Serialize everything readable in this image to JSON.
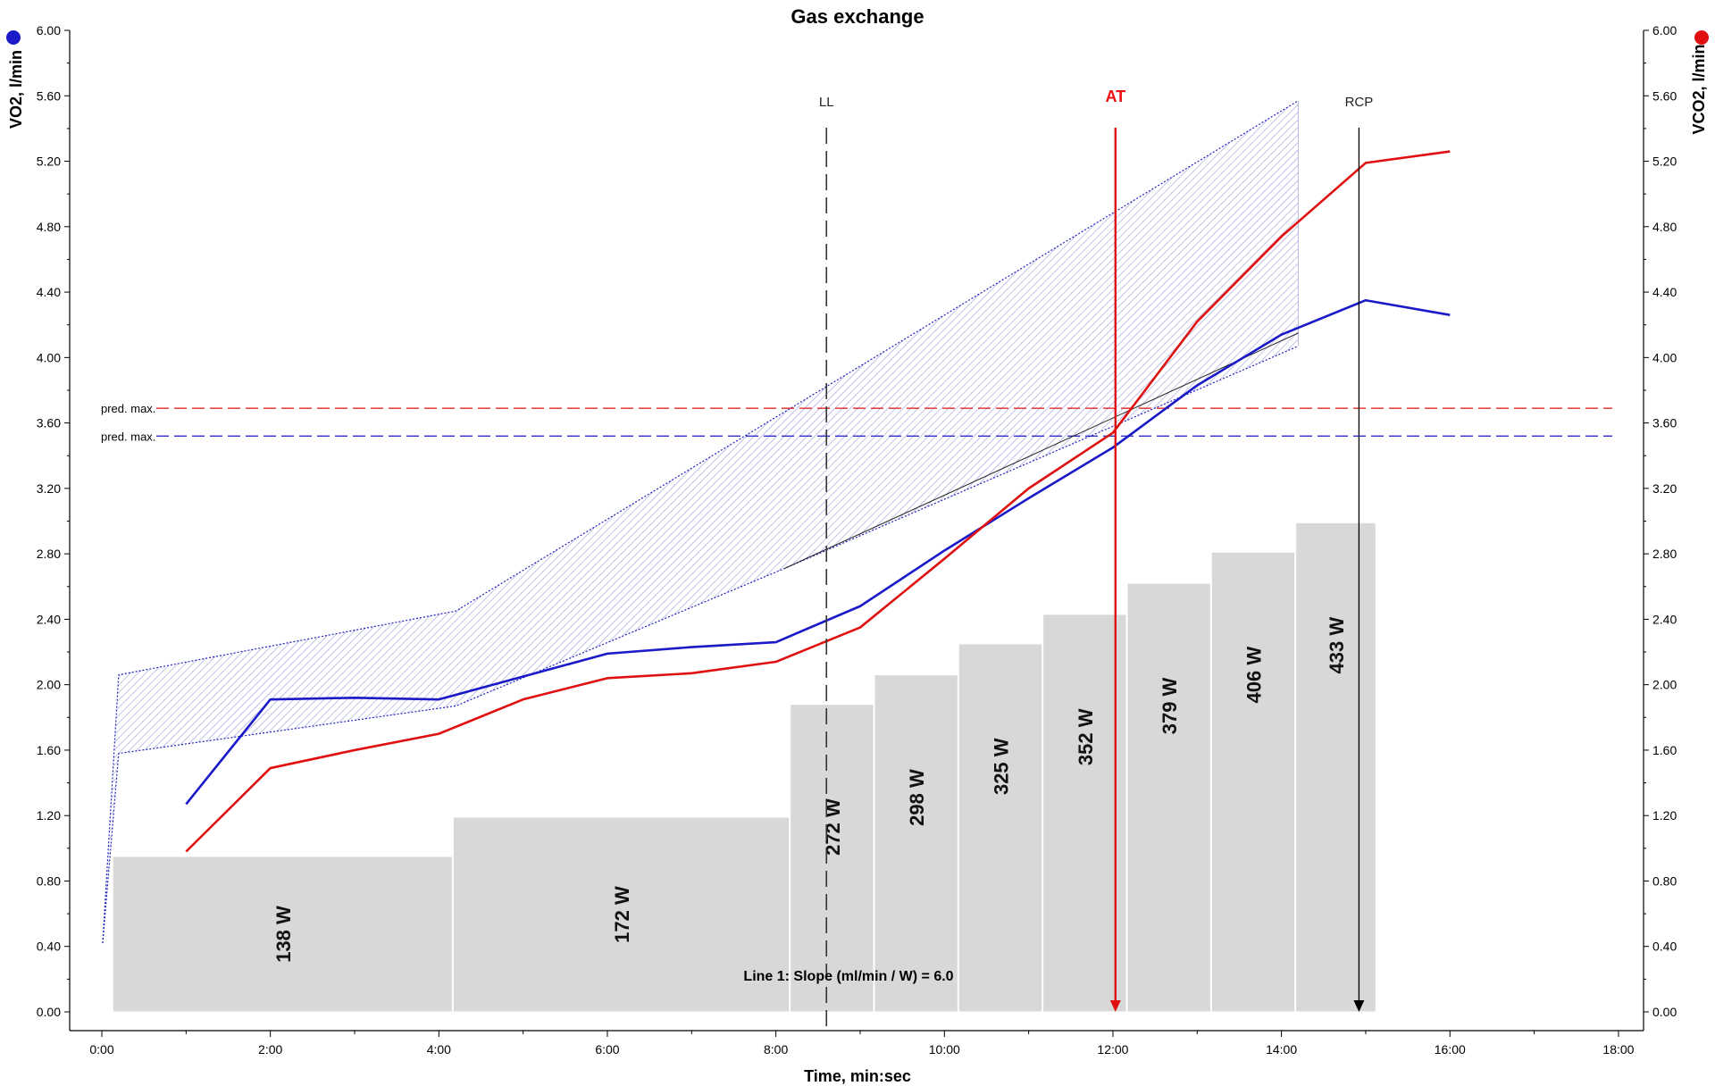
{
  "chart_data": {
    "type": "line",
    "title": "Gas exchange",
    "xlabel": "Time, min:sec",
    "ylabel_left": "VO2, l/min",
    "ylabel_right": "VCO2, l/min",
    "xlim": [
      0,
      18
    ],
    "ylim": [
      0,
      6
    ],
    "x_ticks": [
      "0:00",
      "2:00",
      "4:00",
      "6:00",
      "8:00",
      "10:00",
      "12:00",
      "14:00",
      "16:00",
      "18:00"
    ],
    "y_ticks": [
      "0.00",
      "0.40",
      "0.80",
      "1.20",
      "1.60",
      "2.00",
      "2.40",
      "2.80",
      "3.20",
      "3.60",
      "4.00",
      "4.40",
      "4.80",
      "5.20",
      "5.60",
      "6.00"
    ],
    "colors": {
      "vo2": "#1a1ac8",
      "vco2": "#e01010",
      "bars": "#d8d8d8",
      "shade": "#9b9bd8"
    },
    "series": [
      {
        "name": "VO2",
        "axis": "left",
        "color": "#1a1ac8",
        "x": [
          1,
          2,
          3,
          4,
          5,
          6,
          7,
          8,
          9,
          10,
          11,
          12,
          13,
          14,
          15,
          16
        ],
        "y": [
          1.27,
          1.91,
          1.92,
          1.91,
          2.05,
          2.19,
          2.23,
          2.26,
          2.48,
          2.82,
          3.14,
          3.45,
          3.83,
          4.14,
          4.35,
          4.26
        ]
      },
      {
        "name": "VCO2",
        "axis": "right",
        "color": "#e01010",
        "x": [
          1,
          2,
          3,
          4,
          5,
          6,
          7,
          8,
          9,
          10,
          11,
          12,
          13,
          14,
          15,
          16
        ],
        "y": [
          0.98,
          1.49,
          1.6,
          1.7,
          1.91,
          2.04,
          2.07,
          2.14,
          2.35,
          2.77,
          3.2,
          3.54,
          4.22,
          4.74,
          5.19,
          5.26
        ]
      }
    ],
    "workload_bars": [
      {
        "label": "138 W",
        "x0": 0.13,
        "x1": 4.17,
        "value": 0.95
      },
      {
        "label": "172 W",
        "x0": 4.17,
        "x1": 8.17,
        "value": 1.19
      },
      {
        "label": "272 W",
        "x0": 8.17,
        "x1": 9.17,
        "value": 1.88
      },
      {
        "label": "298 W",
        "x0": 9.17,
        "x1": 10.17,
        "value": 2.06
      },
      {
        "label": "325 W",
        "x0": 10.17,
        "x1": 11.17,
        "value": 2.25
      },
      {
        "label": "352 W",
        "x0": 11.17,
        "x1": 12.17,
        "value": 2.43
      },
      {
        "label": "379 W",
        "x0": 12.17,
        "x1": 13.17,
        "value": 2.62
      },
      {
        "label": "406 W",
        "x0": 13.17,
        "x1": 14.17,
        "value": 2.81
      },
      {
        "label": "433 W",
        "x0": 14.17,
        "x1": 15.13,
        "value": 2.99
      }
    ],
    "shaded_band": {
      "upper": [
        [
          0.01,
          0.42
        ],
        [
          0.2,
          2.06
        ],
        [
          4.2,
          2.45
        ],
        [
          14.2,
          5.57
        ]
      ],
      "lower": [
        [
          0.2,
          1.58
        ],
        [
          4.2,
          1.87
        ],
        [
          8.1,
          2.71
        ],
        [
          14.2,
          4.07
        ]
      ]
    },
    "slope_line": {
      "label": "Line 1: Slope (ml/min / W) = 6.0",
      "x": [
        8.1,
        14.2
      ],
      "y": [
        2.71,
        4.15
      ]
    },
    "markers": [
      {
        "label": "LL",
        "x": 8.6,
        "style": "dashed",
        "color": "#333333"
      },
      {
        "label": "AT",
        "x": 12.03,
        "style": "arrow",
        "color": "#e01010"
      },
      {
        "label": "RCP",
        "x": 14.92,
        "style": "arrow",
        "color": "#000000"
      }
    ],
    "pred_max": [
      {
        "label": "pred. max.",
        "value": 3.69,
        "color": "#e01010"
      },
      {
        "label": "pred. max.",
        "value": 3.52,
        "color": "#1a1ac8"
      }
    ]
  }
}
